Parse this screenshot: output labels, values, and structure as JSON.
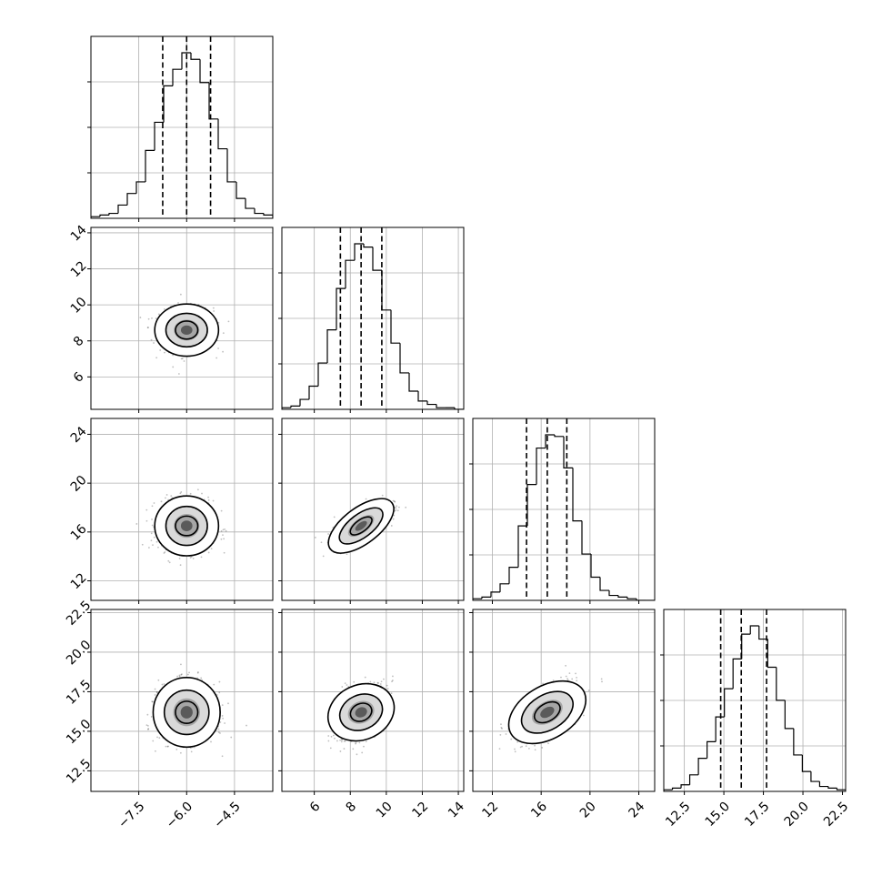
{
  "chart_data": {
    "type": "corner",
    "grid": true,
    "parameters": [
      {
        "range": [
          -9.0,
          -3.3
        ],
        "ticks": [
          -7.5,
          -6.0,
          -4.5
        ],
        "tick_labels": [
          "−7.5",
          "−6.0",
          "−4.5"
        ],
        "quantiles": [
          -6.75,
          -6.0,
          -5.25
        ],
        "hist_edges": [
          -9.0,
          -3.3
        ],
        "hist_counts": [
          1,
          2,
          3,
          8,
          15,
          22,
          41,
          58,
          80,
          90,
          100,
          96,
          82,
          60,
          42,
          22,
          12,
          6,
          3,
          2
        ]
      },
      {
        "range": [
          4.2,
          14.3
        ],
        "ticks": [
          6,
          8,
          10,
          12,
          14
        ],
        "tick_labels": [
          "6",
          "8",
          "10",
          "12",
          "14"
        ],
        "quantiles": [
          7.45,
          8.6,
          9.75
        ],
        "hist_edges": [
          4.2,
          14.3
        ],
        "hist_counts": [
          1,
          2,
          6,
          14,
          28,
          48,
          73,
          90,
          100,
          98,
          84,
          60,
          40,
          22,
          11,
          5,
          3,
          1,
          1,
          0
        ]
      },
      {
        "range": [
          10.4,
          25.3
        ],
        "ticks": [
          12,
          16,
          20,
          24
        ],
        "tick_labels": [
          "12",
          "16",
          "20",
          "24"
        ],
        "quantiles": [
          14.8,
          16.5,
          18.1
        ],
        "hist_edges": [
          10.4,
          25.3
        ],
        "hist_counts": [
          1,
          2,
          5,
          10,
          20,
          45,
          70,
          92,
          100,
          99,
          80,
          48,
          28,
          14,
          6,
          3,
          2,
          1,
          0,
          0
        ]
      },
      {
        "range": [
          11.2,
          22.7
        ],
        "ticks": [
          12.5,
          15.0,
          17.5,
          20.0,
          22.5
        ],
        "tick_labels": [
          "12.5",
          "15.0",
          "17.5",
          "20.0",
          "22.5"
        ],
        "quantiles": [
          14.8,
          16.1,
          17.7
        ],
        "hist_edges": [
          11.2,
          22.7
        ],
        "hist_counts": [
          1,
          2,
          4,
          10,
          20,
          30,
          45,
          62,
          80,
          95,
          100,
          92,
          75,
          55,
          38,
          22,
          12,
          6,
          3,
          2,
          1
        ]
      }
    ],
    "pairs": [
      {
        "row": 1,
        "col": 0,
        "center": [
          -6.0,
          8.6
        ],
        "contours": [
          [
            0.35,
            0.5
          ],
          [
            0.65,
            0.93
          ],
          [
            1.0,
            1.45
          ]
        ],
        "correlation": 0.0
      },
      {
        "row": 2,
        "col": 0,
        "center": [
          -6.0,
          16.5
        ],
        "contours": [
          [
            0.35,
            0.8
          ],
          [
            0.65,
            1.6
          ],
          [
            1.0,
            2.45
          ]
        ],
        "correlation": 0.0
      },
      {
        "row": 2,
        "col": 1,
        "center": [
          8.6,
          16.5
        ],
        "contours": [
          [
            0.6,
            0.65
          ],
          [
            1.2,
            1.3
          ],
          [
            1.8,
            2.0
          ]
        ],
        "correlation": 0.75
      },
      {
        "row": 3,
        "col": 0,
        "center": [
          -6.0,
          16.2
        ],
        "contours": [
          [
            0.35,
            0.7
          ],
          [
            0.7,
            1.4
          ],
          [
            1.05,
            2.2
          ]
        ],
        "correlation": 0.0
      },
      {
        "row": 3,
        "col": 1,
        "center": [
          8.6,
          16.2
        ],
        "contours": [
          [
            0.55,
            0.65
          ],
          [
            1.1,
            1.3
          ],
          [
            1.7,
            2.05
          ]
        ],
        "correlation": 0.45
      },
      {
        "row": 3,
        "col": 2,
        "center": [
          16.5,
          16.2
        ],
        "contours": [
          [
            1.0,
            0.7
          ],
          [
            2.0,
            1.4
          ],
          [
            3.0,
            2.1
          ]
        ],
        "correlation": 0.6
      }
    ]
  }
}
